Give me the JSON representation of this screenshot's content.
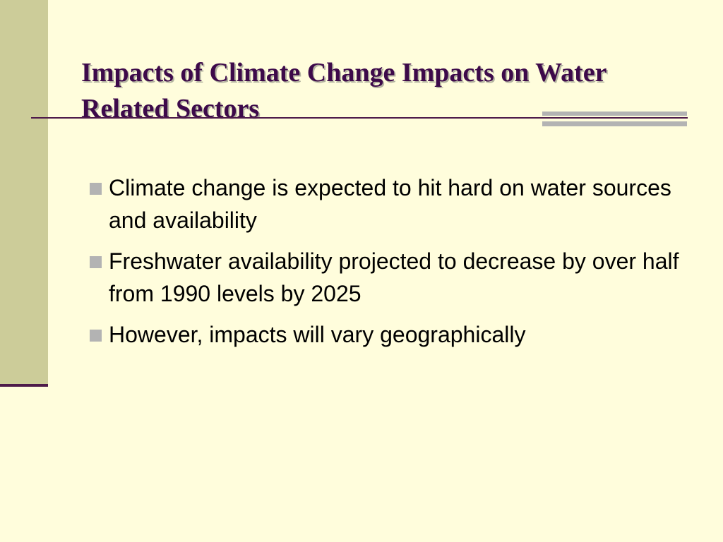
{
  "slide": {
    "title": "Impacts of Climate Change Impacts on Water Related Sectors",
    "bullets": [
      "Climate change is expected to hit hard on water sources and availability",
      "Freshwater availability projected to decrease by over half from 1990 levels by 2025",
      "However, impacts will vary geographically"
    ]
  },
  "colors": {
    "background": "#FFFDDC",
    "sidebar": "#CCCC99",
    "title": "#3D0A4A",
    "rule": "#4D1A4A",
    "bullet_marker": "#B3B3B3"
  }
}
